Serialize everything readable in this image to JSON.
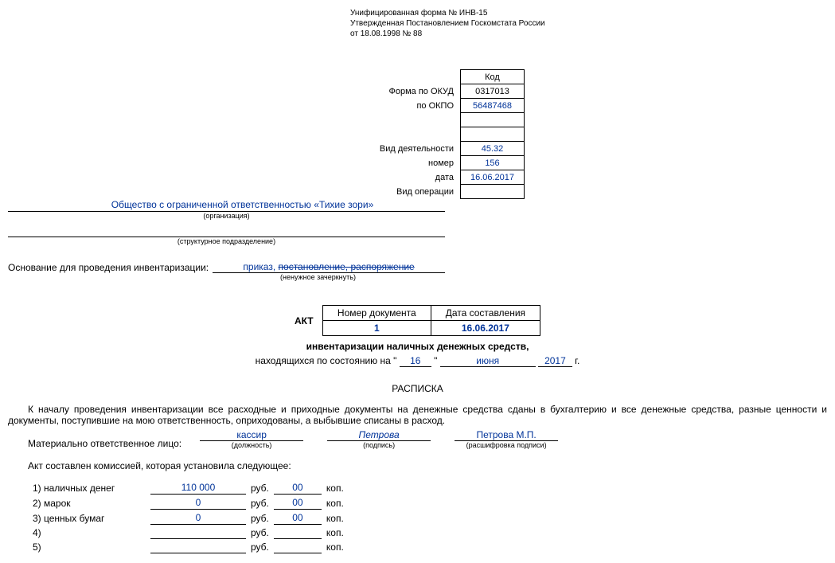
{
  "form_header": {
    "line1": "Унифицированная форма № ИНВ-15",
    "line2": "Утвержденная Постановлением Госкомстата России",
    "line3": "от 18.08.1998 № 88"
  },
  "codes": {
    "header": "Код",
    "okud_label": "Форма по ОКУД",
    "okud": "0317013",
    "okpo_label": "по ОКПО",
    "okpo": "56487468",
    "activity_label": "Вид деятельности",
    "activity": "45.32",
    "number_label": "номер",
    "number": "156",
    "date_label": "дата",
    "date": "16.06.2017",
    "operation_label": "Вид операции",
    "operation": ""
  },
  "org": {
    "name": "Общество с ограниченной ответственностью «Тихие зори»",
    "name_sub": "(организация)",
    "struct": "",
    "struct_sub": "(структурное подразделение)"
  },
  "basis": {
    "label": "Основание для проведения инвентаризации:",
    "value_keep": "приказ,",
    "value_struck": "постановление, распоряжение",
    "sub": "(ненужное зачеркнуть)"
  },
  "akt": {
    "label": "АКТ",
    "doc_num_label": "Номер документа",
    "doc_num": "1",
    "doc_date_label": "Дата составления",
    "doc_date": "16.06.2017",
    "title": "инвентаризации наличных денежных средств,",
    "sub": "находящихся по состоянию на",
    "day": "16",
    "month": "июня",
    "year": "2017",
    "year_suffix": "г."
  },
  "raspiska": {
    "title": "РАСПИСКА",
    "body": "К началу проведения инвентаризации все расходные и приходные документы на денежные средства сданы в бухгалтерию и все денежные средства, разные ценности и документы, поступившие на мою ответственность, оприходованы, а выбывшие списаны в расход."
  },
  "signer": {
    "label": "Материально ответственное лицо:",
    "position": "кассир",
    "position_sub": "(должность)",
    "sign": "Петрова",
    "sign_sub": "(подпись)",
    "fullname": "Петрова М.П.",
    "fullname_sub": "(расшифровка подписи)"
  },
  "commission": {
    "intro": "Акт составлен комиссией, которая установила следующее:",
    "rows": [
      {
        "n": "1) наличных денег",
        "rub": "110 000",
        "kop": "00"
      },
      {
        "n": "2) марок",
        "rub": "0",
        "kop": "00"
      },
      {
        "n": "3) ценных бумаг",
        "rub": "0",
        "kop": "00"
      },
      {
        "n": "4)",
        "rub": "",
        "kop": ""
      },
      {
        "n": "5)",
        "rub": "",
        "kop": ""
      }
    ],
    "rub_label": "руб.",
    "kop_label": "коп."
  },
  "colors": {
    "blue": "#003399",
    "black": "#000000",
    "bg": "#ffffff"
  }
}
